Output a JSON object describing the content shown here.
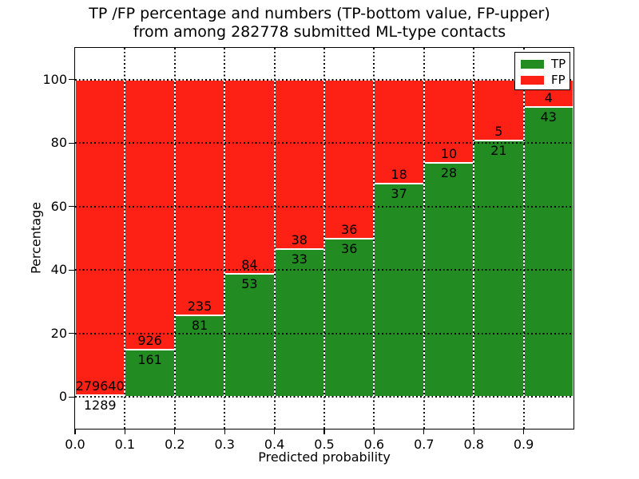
{
  "title": {
    "line1": "TP /FP percentage and numbers (TP-bottom value, FP-upper)",
    "line2": "from among 282778 submitted ML-type contacts"
  },
  "chart_data": {
    "type": "bar",
    "stacked": true,
    "normalized_to_percent": true,
    "title": "TP /FP percentage and numbers (TP-bottom value, FP-upper) from among 282778 submitted ML-type contacts",
    "xlabel": "Predicted probability",
    "ylabel": "Percentage",
    "categories": [
      "0.0-0.1",
      "0.1-0.2",
      "0.2-0.3",
      "0.3-0.4",
      "0.4-0.5",
      "0.5-0.6",
      "0.6-0.7",
      "0.7-0.8",
      "0.8-0.9",
      "0.9-1.0"
    ],
    "series": [
      {
        "name": "TP",
        "color": "#228b22",
        "values": [
          1289,
          161,
          81,
          53,
          33,
          36,
          37,
          28,
          21,
          43
        ]
      },
      {
        "name": "FP",
        "color": "#fd2014",
        "values": [
          279640,
          926,
          235,
          84,
          38,
          36,
          18,
          10,
          5,
          4
        ]
      }
    ],
    "total_contacts": 282778,
    "tp_percent_by_bin": [
      0.46,
      14.81,
      25.63,
      38.69,
      46.48,
      50.0,
      67.27,
      73.68,
      80.77,
      91.49
    ],
    "xticks": [
      "0.0",
      "0.1",
      "0.2",
      "0.3",
      "0.4",
      "0.5",
      "0.6",
      "0.7",
      "0.8",
      "0.9"
    ],
    "yticks": [
      0,
      20,
      40,
      60,
      80,
      100
    ],
    "xlim": [
      0.0,
      1.0
    ],
    "ylim": [
      -10,
      110
    ],
    "grid": {
      "on": true,
      "style": "dotted",
      "color": "#000000"
    },
    "legend": {
      "position": "upper right",
      "entries": [
        "TP",
        "FP"
      ]
    },
    "bar_edge_color": "#ffffff",
    "background_color": "#ffffff"
  }
}
